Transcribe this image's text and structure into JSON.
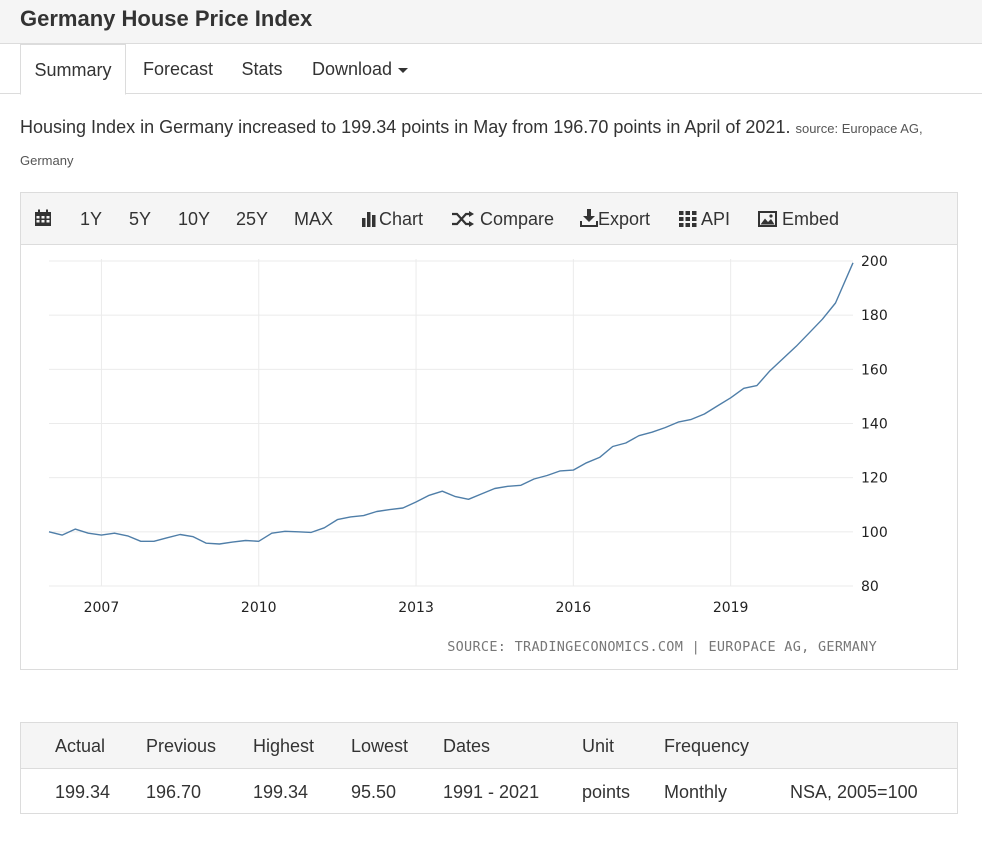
{
  "page": {
    "title": "Germany House Price Index"
  },
  "tabs": [
    {
      "label": "Summary",
      "active": true
    },
    {
      "label": "Forecast"
    },
    {
      "label": "Stats"
    },
    {
      "label": "Download",
      "has_caret": true
    }
  ],
  "summary": {
    "text": "Housing Index in Germany increased to 199.34 points in May from 196.70 points in April of 2021.",
    "source": "source: Europace AG, Germany"
  },
  "toolbar": {
    "calendar_icon": "calendar-icon",
    "ranges": [
      "1Y",
      "5Y",
      "10Y",
      "25Y",
      "MAX"
    ],
    "chart_label": "Chart",
    "compare_label": "Compare",
    "export_label": "Export",
    "api_label": "API",
    "embed_label": "Embed"
  },
  "chart_data": {
    "type": "line",
    "source_label": "SOURCE: TRADINGECONOMICS.COM | EUROPACE AG, GERMANY",
    "x_ticks": [
      "2007",
      "2010",
      "2013",
      "2016",
      "2019"
    ],
    "y_ticks": [
      80,
      100,
      120,
      140,
      160,
      180,
      200
    ],
    "ylim": [
      80,
      200
    ],
    "xlim": [
      "2006-01",
      "2021-05"
    ],
    "grid": true,
    "y_axis_side": "right",
    "line_color": "#4f7ea8",
    "series": [
      {
        "x": [
          "2006-01",
          "2006-04",
          "2006-07",
          "2006-10",
          "2007-01",
          "2007-04",
          "2007-07",
          "2007-10",
          "2008-01",
          "2008-04",
          "2008-07",
          "2008-10",
          "2009-01",
          "2009-04",
          "2009-07",
          "2009-10",
          "2010-01",
          "2010-04",
          "2010-07",
          "2010-10",
          "2011-01",
          "2011-04",
          "2011-07",
          "2011-10",
          "2012-01",
          "2012-04",
          "2012-07",
          "2012-10",
          "2013-01",
          "2013-04",
          "2013-07",
          "2013-10",
          "2014-01",
          "2014-04",
          "2014-07",
          "2014-10",
          "2015-01",
          "2015-04",
          "2015-07",
          "2015-10",
          "2016-01",
          "2016-04",
          "2016-07",
          "2016-10",
          "2017-01",
          "2017-04",
          "2017-07",
          "2017-10",
          "2018-01",
          "2018-04",
          "2018-07",
          "2018-10",
          "2019-01",
          "2019-04",
          "2019-07",
          "2019-10",
          "2020-01",
          "2020-04",
          "2020-07",
          "2020-10",
          "2021-01",
          "2021-05"
        ],
        "values": [
          100.0,
          98.8,
          101.0,
          99.5,
          98.8,
          99.5,
          98.5,
          96.5,
          96.5,
          97.8,
          99.0,
          98.2,
          95.8,
          95.5,
          96.2,
          96.8,
          96.5,
          99.5,
          100.2,
          100.0,
          99.8,
          101.5,
          104.5,
          105.5,
          106.0,
          107.5,
          108.2,
          108.8,
          111.0,
          113.5,
          115.0,
          113.0,
          112.0,
          114.0,
          116.0,
          116.8,
          117.2,
          119.5,
          120.8,
          122.5,
          122.8,
          125.5,
          127.5,
          131.5,
          132.8,
          135.5,
          136.8,
          138.5,
          140.5,
          141.5,
          143.5,
          146.5,
          149.5,
          153.0,
          154.0,
          159.5,
          164.0,
          168.5,
          173.5,
          178.5,
          184.5,
          199.34
        ]
      }
    ]
  },
  "stats": {
    "headers": [
      "Actual",
      "Previous",
      "Highest",
      "Lowest",
      "Dates",
      "Unit",
      "Frequency",
      ""
    ],
    "values": [
      "199.34",
      "196.70",
      "199.34",
      "95.50",
      "1991 - 2021",
      "points",
      "Monthly",
      "NSA, 2005=100"
    ]
  }
}
